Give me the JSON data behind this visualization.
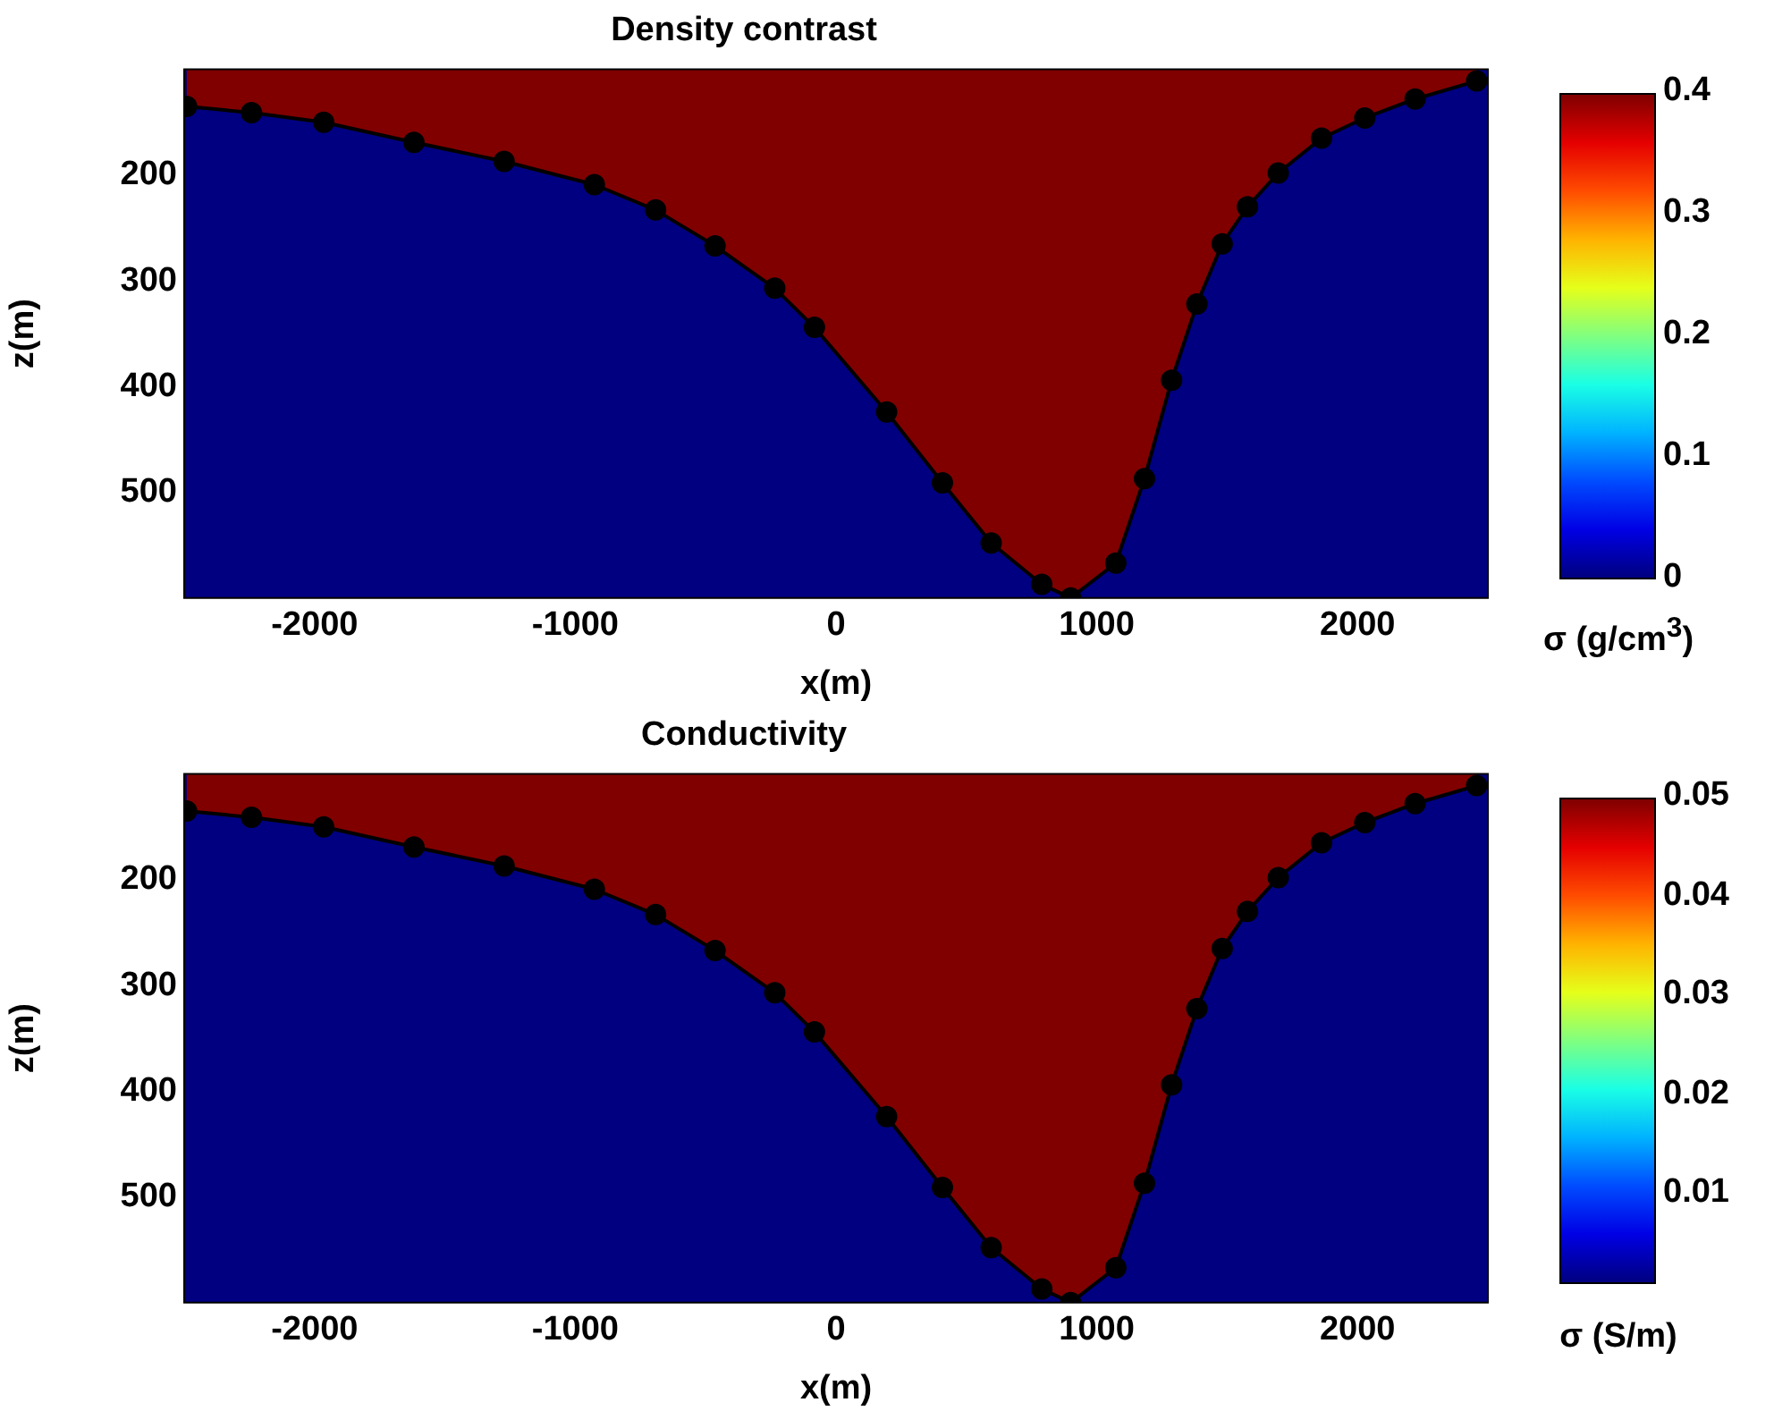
{
  "chart_data": [
    {
      "type": "area",
      "title": "Density contrast",
      "xlabel": "x(m)",
      "ylabel": "z(m)",
      "clabel": "σ (g/cm$^{3}$)",
      "clim": [
        0,
        0.4
      ],
      "cticks": [
        0,
        0.1,
        0.2,
        0.3,
        0.4
      ],
      "xlim": [
        -2500,
        2500
      ],
      "ylim": [
        600,
        100
      ],
      "xticks": [
        -2000,
        -1000,
        0,
        1000,
        2000
      ],
      "yticks": [
        200,
        300,
        400,
        500
      ],
      "legend": false,
      "marker": "circle",
      "line_style": "solid",
      "bands": [
        {
          "axis": "y",
          "from": 600,
          "to": 100,
          "color": "#000080"
        }
      ],
      "series": [
        {
          "color": "#000000",
          "x": [
            -2491,
            -2242,
            -1965,
            -1619,
            -1273,
            -927,
            -692,
            -464,
            -235,
            -83,
            194,
            408,
            595,
            789,
            900,
            1073,
            1183,
            1287,
            1384,
            1481,
            1578,
            1696,
            1862,
            2028,
            2221,
            2457
          ],
          "values": [
            135,
            141,
            150,
            169,
            187,
            209,
            233,
            267,
            307,
            344,
            424,
            491,
            548,
            587,
            600,
            567,
            487,
            394,
            322,
            265,
            230,
            198,
            165,
            146,
            128,
            111
          ]
        }
      ]
    },
    {
      "type": "area",
      "title": "Conductivity",
      "xlabel": "x(m)",
      "ylabel": "z(m)",
      "clabel": "σ (S/m)",
      "clim": [
        0.001,
        0.05
      ],
      "cticks": [
        0.01,
        0.02,
        0.03,
        0.04,
        0.05
      ],
      "xlim": [
        -2500,
        2500
      ],
      "ylim": [
        600,
        100
      ],
      "xticks": [
        -2000,
        -1000,
        0,
        1000,
        2000
      ],
      "yticks": [
        200,
        300,
        400,
        500
      ],
      "legend": false,
      "marker": "circle",
      "line_style": "solid",
      "bands": [
        {
          "axis": "y",
          "from": 600,
          "to": 100,
          "color": "#000080"
        }
      ],
      "series": [
        {
          "color": "#000000",
          "x": [
            -2491,
            -2242,
            -1965,
            -1619,
            -1273,
            -927,
            -692,
            -464,
            -235,
            -83,
            194,
            408,
            595,
            789,
            900,
            1073,
            1183,
            1287,
            1384,
            1481,
            1578,
            1696,
            1862,
            2028,
            2221,
            2457
          ],
          "values": [
            135,
            141,
            150,
            169,
            187,
            209,
            233,
            267,
            307,
            344,
            424,
            491,
            548,
            587,
            600,
            567,
            487,
            394,
            322,
            265,
            230,
            198,
            165,
            146,
            128,
            111
          ]
        }
      ]
    }
  ]
}
